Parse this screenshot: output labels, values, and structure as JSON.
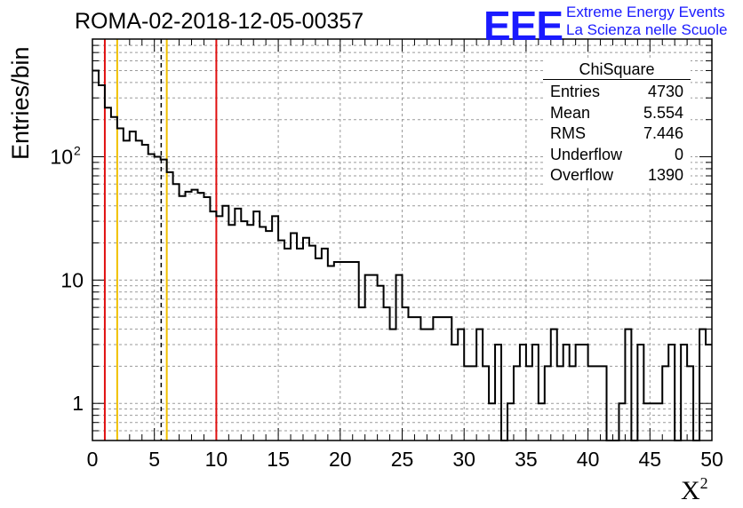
{
  "header": {
    "title": "ROMA-02-2018-12-05-00357",
    "logo_text": "EEE",
    "org_line1": "Extreme Energy Events",
    "org_line2": "La Scienza nelle Scuole"
  },
  "colors": {
    "logo": "#1a1aff",
    "histogram": "#000000",
    "red_line": "#e01010",
    "yellow_line": "#f0c000",
    "grid": "#9a9a9a"
  },
  "stats": {
    "title": "ChiSquare",
    "rows": [
      {
        "label": "Entries",
        "value": "4730"
      },
      {
        "label": "Mean",
        "value": "5.554"
      },
      {
        "label": "RMS",
        "value": "7.446"
      },
      {
        "label": "Underflow",
        "value": "0"
      },
      {
        "label": "Overflow",
        "value": "1390"
      }
    ]
  },
  "chart_data": {
    "type": "histogram",
    "title": "ROMA-02-2018-12-05-00357",
    "xlabel": "X",
    "xlabel_superscript": "2",
    "ylabel": "Entries/bin",
    "xlim": [
      0,
      50
    ],
    "ylim": [
      0.5,
      900
    ],
    "y_scale": "log",
    "grid": true,
    "bin_width": 0.5,
    "x_ticks": [
      0,
      5,
      10,
      15,
      20,
      25,
      30,
      35,
      40,
      45,
      50
    ],
    "y_tick_labels": [
      {
        "value": 1,
        "label": "1"
      },
      {
        "value": 10,
        "label": "10"
      },
      {
        "value": 100,
        "label": "10",
        "exponent": "2"
      }
    ],
    "values": [
      500,
      380,
      250,
      210,
      170,
      135,
      160,
      135,
      125,
      105,
      100,
      95,
      75,
      60,
      48,
      52,
      54,
      51,
      47,
      36,
      33,
      40,
      28,
      38,
      30,
      28,
      36,
      27,
      25,
      33,
      21,
      18,
      24,
      18,
      22,
      19,
      15,
      18,
      13,
      14,
      14,
      14,
      14,
      6,
      11,
      11,
      9,
      6,
      4,
      11,
      6,
      5,
      5,
      4,
      4,
      5,
      5,
      5,
      3,
      4,
      2,
      2,
      4,
      2,
      1,
      3,
      0,
      1,
      2,
      3,
      2,
      3,
      1,
      2,
      4,
      2,
      3,
      2,
      3,
      3,
      2,
      2,
      2,
      0,
      0,
      1,
      4,
      0,
      3,
      1,
      1,
      1,
      2,
      3,
      0,
      3,
      2,
      0,
      4,
      3
    ],
    "vertical_lines": [
      {
        "x": 1.0,
        "color": "#e01010",
        "style": "solid"
      },
      {
        "x": 2.0,
        "color": "#f0c000",
        "style": "solid"
      },
      {
        "x": 5.55,
        "color": "#000000",
        "style": "dashed"
      },
      {
        "x": 6.0,
        "color": "#f0c000",
        "style": "solid"
      },
      {
        "x": 10.0,
        "color": "#e01010",
        "style": "solid"
      }
    ]
  }
}
